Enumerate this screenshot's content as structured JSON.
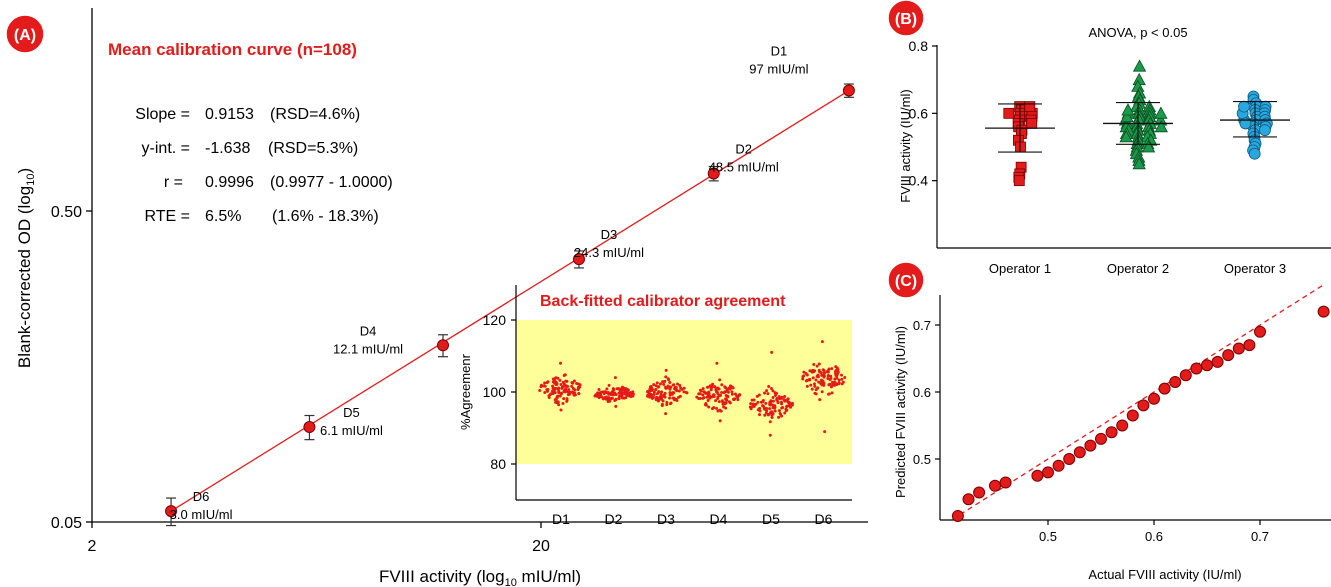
{
  "panels": {
    "A": {
      "badge": "(A)",
      "title": "Mean calibration curve (n=108)",
      "xlabel": "FVIII activity (log",
      "xlabel_sub": "10",
      "xlabel_end": " mIU/ml)",
      "ylabel": "Blank-corrected OD (log",
      "ylabel_sub": "10",
      "ylabel_end": ")",
      "x_ticks": [
        "2",
        "20"
      ],
      "y_ticks": [
        "0.05",
        "0.50"
      ],
      "stats": [
        {
          "name": "Slope =",
          "value": "0.9153",
          "range": "(RSD=4.6%)"
        },
        {
          "name": "y-int. =",
          "value": "-1.638",
          "range": "(RSD=5.3%)"
        },
        {
          "name": "r =",
          "value": "0.9996",
          "range": "(0.9977 - 1.0000)"
        },
        {
          "name": "RTE =",
          "value": "6.5%",
          "range": "(1.6% - 18.3%)"
        }
      ],
      "accent_color": "#e31b1b"
    },
    "B": {
      "badge": "(B)",
      "title": "ANOVA, p < 0.05"
    },
    "C": {
      "badge": "(C)"
    }
  },
  "chart_data": [
    {
      "panel": "A",
      "type": "scatter",
      "x_scale": "log",
      "y_scale": "log",
      "xlim": [
        2,
        120
      ],
      "ylim": [
        0.05,
        1.4
      ],
      "title": "Mean calibration curve (n=108)",
      "xlabel": "FVIII activity (log10 mIU/ml)",
      "ylabel": "Blank-corrected OD (log10)",
      "points": [
        {
          "label": "D1",
          "sub": "97 mIU/ml",
          "x": 97,
          "y": 1.22,
          "err": 0.06
        },
        {
          "label": "D2",
          "sub": "48.5 mIU/ml",
          "x": 48.5,
          "y": 0.66,
          "err": 0.035
        },
        {
          "label": "D3",
          "sub": "24.3 mIU/ml",
          "x": 24.3,
          "y": 0.35,
          "err": 0.022
        },
        {
          "label": "D4",
          "sub": "12.1 mIU/ml",
          "x": 12.1,
          "y": 0.185,
          "err": 0.015
        },
        {
          "label": "D5",
          "sub": "6.1 mIU/ml",
          "x": 6.1,
          "y": 0.101,
          "err": 0.009
        },
        {
          "label": "D6",
          "sub": "3.0 mIU/ml",
          "x": 3.0,
          "y": 0.0542,
          "err": 0.0055
        }
      ],
      "fit_line": {
        "x": [
          3.0,
          97
        ],
        "y": [
          0.0542,
          1.22
        ]
      }
    },
    {
      "panel": "A-inset",
      "type": "scatter",
      "title": "Back-fitted calibrator agreement",
      "ylabel": "%Agreemenr",
      "categories": [
        "D1",
        "D2",
        "D3",
        "D4",
        "D5",
        "D6"
      ],
      "yticks": [
        80,
        100,
        120
      ],
      "ylim": [
        75,
        122
      ],
      "band": [
        80,
        120
      ],
      "band_color": "#ffff99",
      "series": [
        {
          "category": "D1",
          "center": 101,
          "spread": 2.3,
          "min": 95,
          "max": 108
        },
        {
          "category": "D2",
          "center": 99.5,
          "spread": 1.3,
          "min": 96,
          "max": 104
        },
        {
          "category": "D3",
          "center": 100,
          "spread": 2.0,
          "min": 94,
          "max": 106
        },
        {
          "category": "D4",
          "center": 99,
          "spread": 2.4,
          "min": 92,
          "max": 108
        },
        {
          "category": "D5",
          "center": 96.5,
          "spread": 2.6,
          "min": 88,
          "max": 111
        },
        {
          "category": "D6",
          "center": 104,
          "spread": 3.0,
          "min": 89,
          "max": 114
        }
      ]
    },
    {
      "panel": "B",
      "type": "scatter",
      "title": "ANOVA, p < 0.05",
      "ylabel": "FVIII activity (IU/ml)",
      "categories": [
        "Operator 1",
        "Operator 2",
        "Operator 3"
      ],
      "yticks": [
        0.4,
        0.6,
        0.8
      ],
      "ylim": [
        0.2,
        0.8
      ],
      "series": [
        {
          "name": "Operator 1",
          "marker": "square",
          "color": "#e31b1b",
          "mean": 0.556,
          "sd_low": 0.485,
          "sd_high": 0.628,
          "values": [
            0.62,
            0.61,
            0.6,
            0.6,
            0.59,
            0.58,
            0.57,
            0.56,
            0.55,
            0.6,
            0.61,
            0.59,
            0.58,
            0.54,
            0.52,
            0.5,
            0.44,
            0.42,
            0.41,
            0.4,
            0.62,
            0.57
          ]
        },
        {
          "name": "Operator 2",
          "marker": "triangle",
          "color": "#1a9a4a",
          "mean": 0.57,
          "sd_low": 0.508,
          "sd_high": 0.632,
          "values": [
            0.74,
            0.7,
            0.68,
            0.66,
            0.65,
            0.64,
            0.63,
            0.62,
            0.62,
            0.61,
            0.61,
            0.6,
            0.6,
            0.6,
            0.59,
            0.59,
            0.58,
            0.58,
            0.58,
            0.57,
            0.57,
            0.57,
            0.56,
            0.56,
            0.56,
            0.55,
            0.55,
            0.55,
            0.54,
            0.54,
            0.53,
            0.53,
            0.52,
            0.52,
            0.51,
            0.51,
            0.5,
            0.5,
            0.49,
            0.48,
            0.47,
            0.46,
            0.45,
            0.58,
            0.59,
            0.61,
            0.6,
            0.56,
            0.54,
            0.53
          ]
        },
        {
          "name": "Operator 3",
          "marker": "circle",
          "color": "#29a8e0",
          "mean": 0.58,
          "sd_low": 0.53,
          "sd_high": 0.635,
          "values": [
            0.65,
            0.64,
            0.63,
            0.62,
            0.62,
            0.61,
            0.61,
            0.6,
            0.6,
            0.59,
            0.59,
            0.58,
            0.58,
            0.58,
            0.57,
            0.57,
            0.56,
            0.56,
            0.55,
            0.55,
            0.54,
            0.53,
            0.52,
            0.51,
            0.5,
            0.49,
            0.48,
            0.6,
            0.62,
            0.57
          ]
        }
      ]
    },
    {
      "panel": "C",
      "type": "scatter",
      "xlabel": "Actual FVIII activity (IU/ml)",
      "ylabel": "Predicted FVIII activity (IU/ml)",
      "xticks": [
        0.5,
        0.6,
        0.7
      ],
      "yticks": [
        0.5,
        0.6,
        0.7
      ],
      "xlim": [
        0.41,
        0.76
      ],
      "ylim": [
        0.41,
        0.75
      ],
      "identity_line": true,
      "marker_color": "#e31b1b",
      "points": [
        [
          0.415,
          0.415
        ],
        [
          0.425,
          0.44
        ],
        [
          0.435,
          0.45
        ],
        [
          0.45,
          0.46
        ],
        [
          0.46,
          0.465
        ],
        [
          0.49,
          0.475
        ],
        [
          0.5,
          0.48
        ],
        [
          0.51,
          0.49
        ],
        [
          0.52,
          0.5
        ],
        [
          0.53,
          0.51
        ],
        [
          0.54,
          0.52
        ],
        [
          0.55,
          0.53
        ],
        [
          0.56,
          0.54
        ],
        [
          0.57,
          0.55
        ],
        [
          0.58,
          0.565
        ],
        [
          0.59,
          0.58
        ],
        [
          0.6,
          0.59
        ],
        [
          0.61,
          0.605
        ],
        [
          0.62,
          0.615
        ],
        [
          0.63,
          0.625
        ],
        [
          0.64,
          0.635
        ],
        [
          0.65,
          0.64
        ],
        [
          0.66,
          0.645
        ],
        [
          0.67,
          0.655
        ],
        [
          0.68,
          0.665
        ],
        [
          0.69,
          0.67
        ],
        [
          0.7,
          0.69
        ],
        [
          0.76,
          0.72
        ]
      ]
    }
  ]
}
